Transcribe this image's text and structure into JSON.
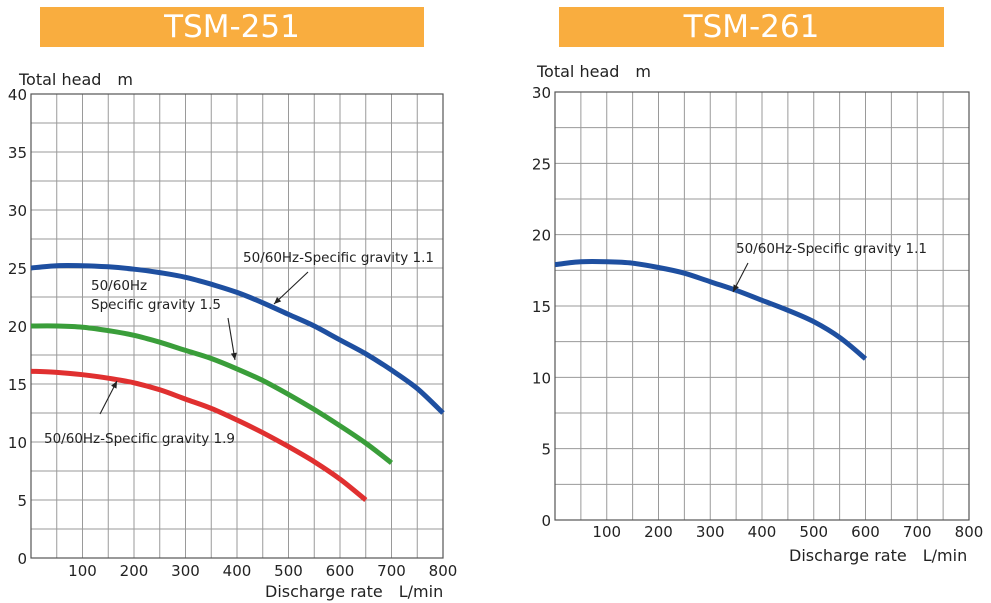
{
  "chart_data": [
    {
      "type": "line",
      "title": "TSM-251",
      "ylabel": "Total head　m",
      "xlabel": "Discharge rate　L/min",
      "xlim": [
        0,
        800
      ],
      "ylim": [
        0,
        40
      ],
      "xticks": [
        "100",
        "200",
        "300",
        "400",
        "500",
        "600",
        "700",
        "800"
      ],
      "yticks": [
        "0",
        "5",
        "10",
        "15",
        "20",
        "25",
        "30",
        "35",
        "40"
      ],
      "grid": true,
      "series": [
        {
          "name": "50/60Hz-Specific gravity 1.1",
          "color": "#1e4fa0",
          "x": [
            0,
            50,
            100,
            150,
            200,
            250,
            300,
            350,
            400,
            450,
            500,
            550,
            600,
            650,
            700,
            750,
            800
          ],
          "y": [
            25,
            25.2,
            25.2,
            25.1,
            24.9,
            24.6,
            24.2,
            23.6,
            22.9,
            22.0,
            21.0,
            20.0,
            18.8,
            17.6,
            16.2,
            14.6,
            12.5
          ]
        },
        {
          "name": "50/60Hz Specific gravity 1.5",
          "color": "#3a9e3a",
          "x": [
            0,
            50,
            100,
            150,
            200,
            250,
            300,
            350,
            400,
            450,
            500,
            550,
            600,
            650,
            700
          ],
          "y": [
            20,
            20,
            19.9,
            19.6,
            19.2,
            18.6,
            17.9,
            17.2,
            16.3,
            15.3,
            14.1,
            12.8,
            11.4,
            9.9,
            8.2
          ]
        },
        {
          "name": "50/60Hz-Specific gravity 1.9",
          "color": "#e03030",
          "x": [
            0,
            50,
            100,
            150,
            200,
            250,
            300,
            350,
            400,
            450,
            500,
            550,
            600,
            650
          ],
          "y": [
            16.1,
            16.0,
            15.8,
            15.5,
            15.1,
            14.5,
            13.7,
            12.9,
            11.9,
            10.8,
            9.6,
            8.3,
            6.8,
            5.0
          ]
        }
      ],
      "annotations": [
        {
          "text": "50/60Hz-Specific gravity 1.1",
          "series": 0
        },
        {
          "text": "50/60Hz",
          "series": 1
        },
        {
          "text": "Specific gravity 1.5",
          "series": 1
        },
        {
          "text": "50/60Hz-Specific gravity 1.9",
          "series": 2
        }
      ]
    },
    {
      "type": "line",
      "title": "TSM-261",
      "ylabel": "Total head　m",
      "xlabel": "Discharge rate　L/min",
      "xlim": [
        0,
        800
      ],
      "ylim": [
        0,
        30
      ],
      "xticks": [
        "100",
        "200",
        "300",
        "400",
        "500",
        "600",
        "700",
        "800"
      ],
      "yticks": [
        "0",
        "5",
        "10",
        "15",
        "20",
        "25",
        "30"
      ],
      "grid": true,
      "series": [
        {
          "name": "50/60Hz-Specific gravity 1.1",
          "color": "#1e4fa0",
          "x": [
            0,
            50,
            100,
            150,
            200,
            250,
            300,
            350,
            400,
            450,
            500,
            550,
            600
          ],
          "y": [
            17.9,
            18.1,
            18.1,
            18.0,
            17.7,
            17.3,
            16.7,
            16.1,
            15.4,
            14.7,
            13.9,
            12.8,
            11.3
          ]
        }
      ],
      "annotations": [
        {
          "text": "50/60Hz-Specific gravity 1.1",
          "series": 0
        }
      ]
    }
  ],
  "style": {
    "banner_color": "#f9ad3f",
    "grid_color": "#9a9a9a",
    "frame_color": "#555555"
  }
}
